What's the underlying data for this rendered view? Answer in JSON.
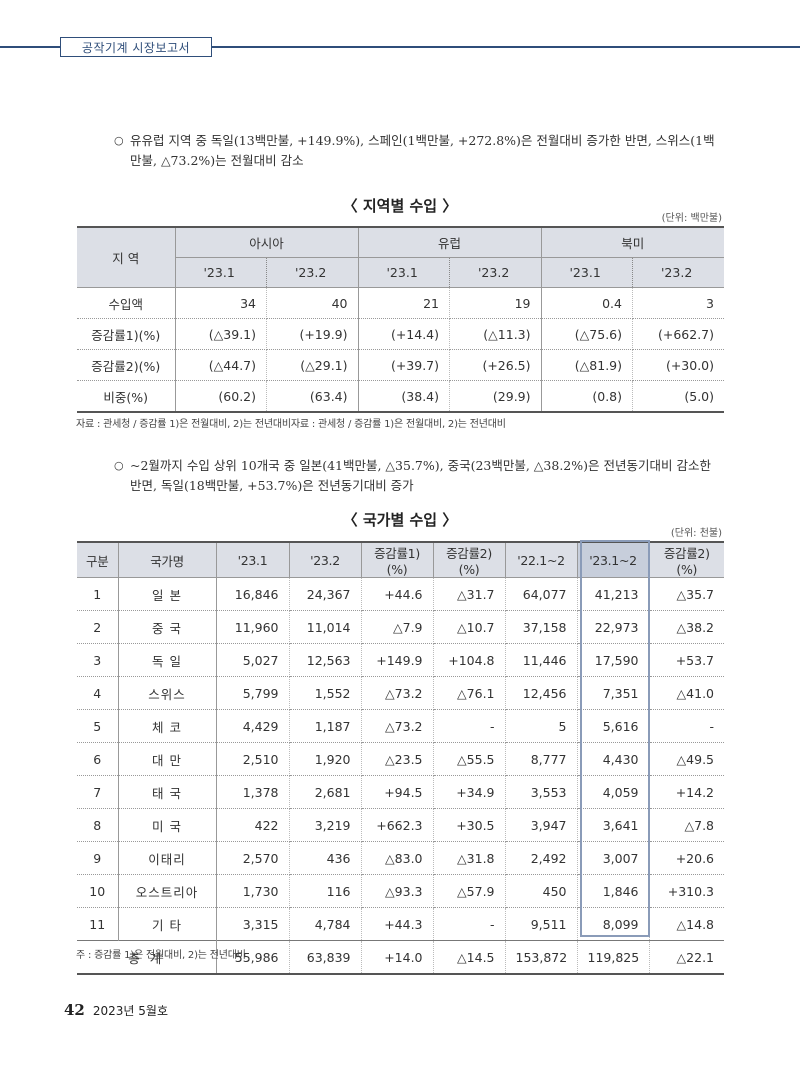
{
  "header": {
    "title": "공작기계 시장보고서"
  },
  "paragraphs": {
    "p1": "유유럽 지역 중 독일(13백만불, +149.9%), 스페인(1백만불, +272.8%)은 전월대비 증가한 반면, 스위스(1백만불, △73.2%)는 전월대비 감소",
    "p2": "~2월까지 수입 상위 10개국 중 일본(41백만불, △35.7%), 중국(23백만불, △38.2%)은 전년동기대비 감소한 반면, 독일(18백만불, +53.7%)은 전년동기대비 증가"
  },
  "bullet": "○",
  "region_table": {
    "title": "〈 지역별 수입 〉",
    "unit": "(단위: 백만불)",
    "region_col": "지 역",
    "groups": [
      "아시아",
      "유럽",
      "북미"
    ],
    "periods": [
      "'23.1",
      "'23.2",
      "'23.1",
      "'23.2",
      "'23.1",
      "'23.2"
    ],
    "rows": [
      {
        "label": "수입액",
        "values": [
          "34",
          "40",
          "21",
          "19",
          "0.4",
          "3"
        ]
      },
      {
        "label": "증감률1)(%)",
        "values": [
          "(△39.1)",
          "(+19.9)",
          "(+14.4)",
          "(△11.3)",
          "(△75.6)",
          "(+662.7)"
        ]
      },
      {
        "label": "증감률2)(%)",
        "values": [
          "(△44.7)",
          "(△29.1)",
          "(+39.7)",
          "(+26.5)",
          "(△81.9)",
          "(+30.0)"
        ]
      },
      {
        "label": "비중(%)",
        "values": [
          "(60.2)",
          "(63.4)",
          "(38.4)",
          "(29.9)",
          "(0.8)",
          "(5.0)"
        ]
      }
    ],
    "source": "자료 : 관세청 / 증감률 1)은 전월대비, 2)는 전년대비자료 : 관세청 / 증감률 1)은 전월대비, 2)는 전년대비"
  },
  "country_table": {
    "title": "〈 국가별 수입 〉",
    "unit": "(단위: 천불)",
    "headers": [
      "구분",
      "국가명",
      "'23.1",
      "'23.2",
      "증감률1)(%)",
      "증감률2)(%)",
      "'22.1~2",
      "'23.1~2",
      "증감률2)(%)"
    ],
    "rows": [
      [
        "1",
        "일 본",
        "16,846",
        "24,367",
        "+44.6",
        "△31.7",
        "64,077",
        "41,213",
        "△35.7"
      ],
      [
        "2",
        "중 국",
        "11,960",
        "11,014",
        "△7.9",
        "△10.7",
        "37,158",
        "22,973",
        "△38.2"
      ],
      [
        "3",
        "독 일",
        "5,027",
        "12,563",
        "+149.9",
        "+104.8",
        "11,446",
        "17,590",
        "+53.7"
      ],
      [
        "4",
        "스위스",
        "5,799",
        "1,552",
        "△73.2",
        "△76.1",
        "12,456",
        "7,351",
        "△41.0"
      ],
      [
        "5",
        "체 코",
        "4,429",
        "1,187",
        "△73.2",
        "-",
        "5",
        "5,616",
        "-"
      ],
      [
        "6",
        "대 만",
        "2,510",
        "1,920",
        "△23.5",
        "△55.5",
        "8,777",
        "4,430",
        "△49.5"
      ],
      [
        "7",
        "태 국",
        "1,378",
        "2,681",
        "+94.5",
        "+34.9",
        "3,553",
        "4,059",
        "+14.2"
      ],
      [
        "8",
        "미 국",
        "422",
        "3,219",
        "+662.3",
        "+30.5",
        "3,947",
        "3,641",
        "△7.8"
      ],
      [
        "9",
        "이태리",
        "2,570",
        "436",
        "△83.0",
        "△31.8",
        "2,492",
        "3,007",
        "+20.6"
      ],
      [
        "10",
        "오스트리아",
        "1,730",
        "116",
        "△93.3",
        "△57.9",
        "450",
        "1,846",
        "+310.3"
      ],
      [
        "11",
        "기 타",
        "3,315",
        "4,784",
        "+44.3",
        "-",
        "9,511",
        "8,099",
        "△14.8"
      ]
    ],
    "total": [
      "총 계",
      "55,986",
      "63,839",
      "+14.0",
      "△14.5",
      "153,872",
      "119,825",
      "△22.1"
    ],
    "note": "주 : 증감률 1)은 전월대비, 2)는 전년대비"
  },
  "footer": {
    "page": "42",
    "issue": "2023년 5월호"
  }
}
